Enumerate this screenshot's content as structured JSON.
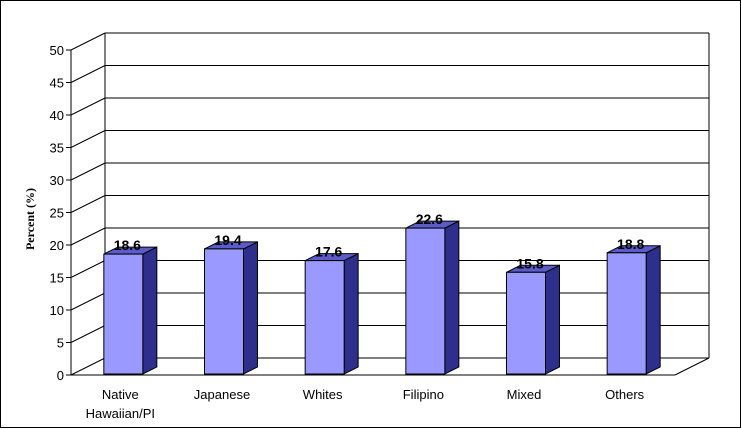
{
  "chart_data": {
    "type": "bar",
    "title": "",
    "xlabel": "",
    "ylabel": "Percent (%)",
    "categories": [
      [
        "Native",
        "Hawaiian/PI"
      ],
      [
        "Japanese"
      ],
      [
        "Whites"
      ],
      [
        "Filipino"
      ],
      [
        "Mixed"
      ],
      [
        "Others"
      ]
    ],
    "values": [
      18.6,
      19.4,
      17.6,
      22.6,
      15.8,
      18.8
    ],
    "data_labels": [
      "18.6",
      "19.4",
      "17.6",
      "22.6",
      "15.8",
      "18.8"
    ],
    "ylim": [
      0,
      50
    ],
    "yticks": [
      0,
      5,
      10,
      15,
      20,
      25,
      30,
      35,
      40,
      45,
      50
    ],
    "grid": true,
    "legend": "none",
    "style": "3d-column",
    "colors": {
      "bar_front": "#9999ff",
      "bar_side": "#2e2e8c",
      "bar_top": "#5c5cc8",
      "bar_edge": "#000000",
      "grid": "#000000"
    }
  }
}
